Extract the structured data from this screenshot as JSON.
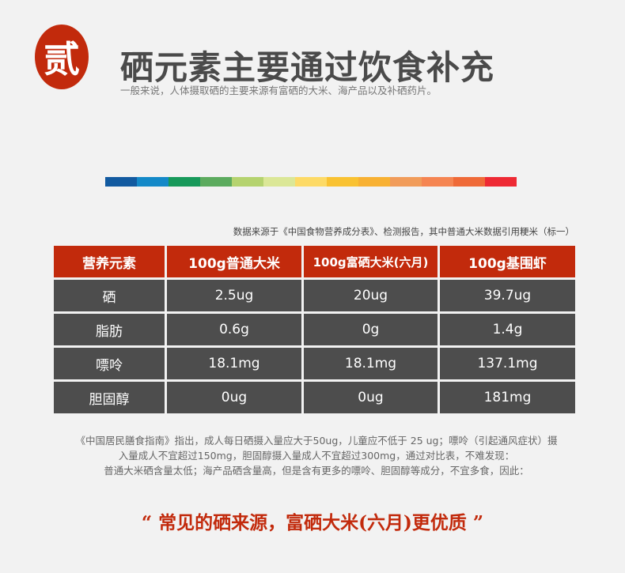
{
  "header": {
    "badge": "贰",
    "title": "硒元素主要通过饮食补充",
    "subtitle": "一般来说，人体摄取硒的主要来源有富硒的大米、海产品以及补硒药片。"
  },
  "color_bar": [
    "#125aa0",
    "#1489c8",
    "#17995a",
    "#5cab5e",
    "#b5d36f",
    "#dbe797",
    "#fdda66",
    "#f9c232",
    "#f8b133",
    "#f19c5a",
    "#f58552",
    "#ef6a38",
    "#ee2a34"
  ],
  "source_note": "数据来源于《中国食物营养成分表》、检测报告，其中普通大米数据引用粳米（标一）",
  "table": {
    "headers": [
      "营养元素",
      "100g普通大米",
      "100g富硒大米(六月)",
      "100g基围虾"
    ],
    "rows": [
      [
        "硒",
        "2.5ug",
        "20ug",
        "39.7ug"
      ],
      [
        "脂肪",
        "0.6g",
        "0g",
        "1.4g"
      ],
      [
        "嘌呤",
        "18.1mg",
        "18.1mg",
        "137.1mg"
      ],
      [
        "胆固醇",
        "0ug",
        "0ug",
        "181mg"
      ]
    ]
  },
  "note": [
    "《中国居民膳食指南》指出，成人每日硒摄入量应大于50ug，儿童应不低于 25 ug；嘌呤（引起通风症状）摄",
    "入量成人不宜超过150mg，胆固醇摄入量成人不宜超过300mg，通过对比表，不难发现：",
    "普通大米硒含量太低；海产品硒含量高，但是含有更多的嘌呤、胆固醇等成分，不宜多食，因此："
  ],
  "conclusion": "“ 常见的硒来源，富硒大米(六月)更优质 ”",
  "colors": {
    "accent": "#c22a0c",
    "cell": "#4d4d4d"
  }
}
